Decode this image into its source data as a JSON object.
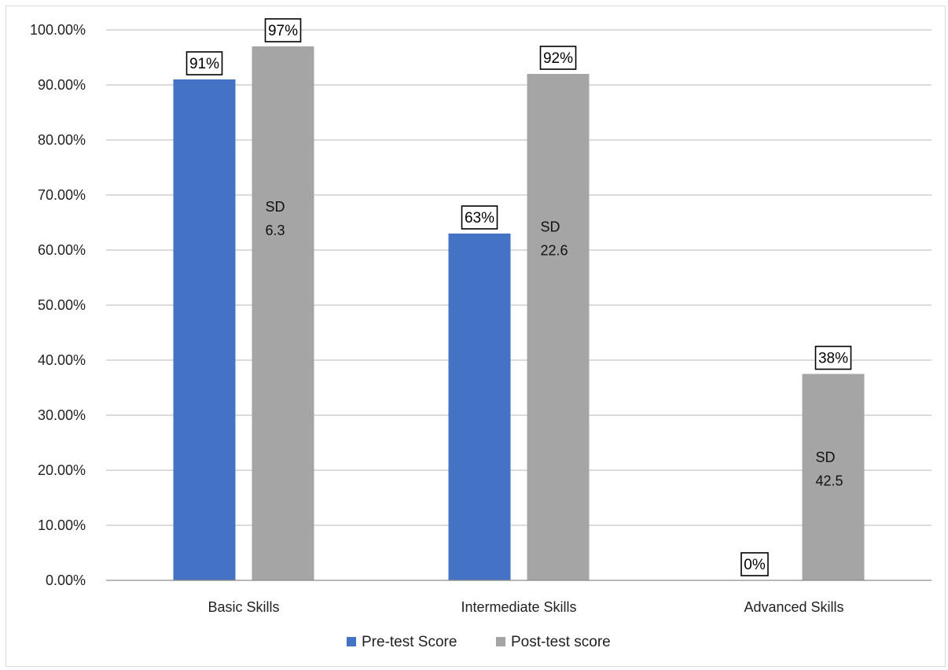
{
  "chart_data": {
    "type": "bar",
    "categories": [
      "Basic Skills",
      "Intermediate Skills",
      "Advanced Skills"
    ],
    "series": [
      {
        "name": "Pre-test Score",
        "values": [
          91,
          63,
          0
        ],
        "labels": [
          "91%",
          "63%",
          "0%"
        ],
        "color": "#4472c4"
      },
      {
        "name": "Post-test score",
        "values": [
          97,
          92,
          37.5
        ],
        "labels": [
          "97%",
          "92%",
          "38%"
        ],
        "color": "#a5a5a5"
      }
    ],
    "sd_annotations": [
      {
        "category": "Basic Skills",
        "line1": "SD",
        "line2": "6.3"
      },
      {
        "category": "Intermediate Skills",
        "line1": "SD",
        "line2": "22.6"
      },
      {
        "category": "Advanced Skills",
        "line1": "SD",
        "line2": "42.5"
      }
    ],
    "y_ticks": [
      "0.00%",
      "10.00%",
      "20.00%",
      "30.00%",
      "40.00%",
      "50.00%",
      "60.00%",
      "70.00%",
      "80.00%",
      "90.00%",
      "100.00%"
    ],
    "ylim": [
      0,
      100
    ],
    "grid": true,
    "legend_position": "bottom",
    "gridline_color": "#b7b7b7"
  }
}
